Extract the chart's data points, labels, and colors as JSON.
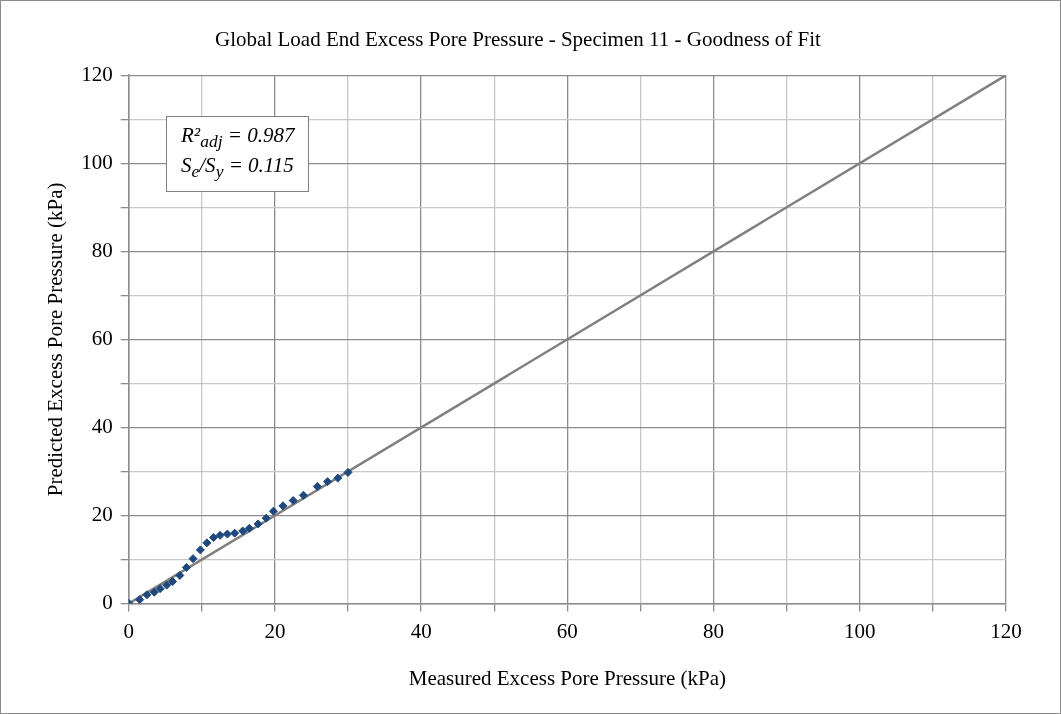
{
  "chart_data": {
    "type": "scatter",
    "title": "Global Load End Excess Pore Pressure - Specimen 11 - Goodness of Fit",
    "xlabel": "Measured Excess Pore Pressure (kPa)",
    "ylabel": "Predicted Excess Pore Pressure (kPa)",
    "annotations": [
      "R²$_{adj}$ = 0.987",
      "S$_{e}$/S$_{y}$ = 0.115"
    ],
    "xlim": [
      0,
      120
    ],
    "ylim": [
      0,
      120
    ],
    "xticks": [
      0,
      {
        "value": 10,
        "label": null
      },
      20,
      {
        "value": 30,
        "label": null
      },
      40,
      {
        "value": 50,
        "label": null
      },
      60,
      {
        "value": 70,
        "label": null
      },
      80,
      {
        "value": 90,
        "label": null
      },
      100,
      {
        "value": 110,
        "label": null
      },
      120
    ],
    "yticks": [
      0,
      {
        "value": 10,
        "label": null
      },
      20,
      {
        "value": 30,
        "label": null
      },
      40,
      {
        "value": 50,
        "label": null
      },
      60,
      {
        "value": 70,
        "label": null
      },
      80,
      {
        "value": 90,
        "label": null
      },
      100,
      {
        "value": 110,
        "label": null
      },
      120
    ],
    "grid": true,
    "legend": false,
    "series": [
      {
        "type": "scatter",
        "color": "#1f497d",
        "marker": "diamond",
        "x": [
          0,
          1.5,
          2.5,
          3.5,
          4.3,
          5.2,
          6.0,
          7.0,
          7.9,
          8.8,
          9.8,
          10.7,
          11.6,
          12.5,
          13.5,
          14.5,
          15.6,
          16.5,
          17.7,
          18.8,
          19.8,
          21.1,
          22.5,
          23.9,
          25.8,
          27.2,
          28.6,
          30.0
        ],
        "values": [
          0.1,
          0.9,
          2.0,
          2.6,
          3.4,
          4.2,
          5.0,
          6.4,
          8.2,
          10.2,
          12.2,
          13.8,
          15.0,
          15.5,
          15.8,
          16.0,
          16.5,
          17.1,
          18.1,
          19.4,
          21.0,
          22.2,
          23.4,
          24.6,
          26.6,
          27.7,
          28.5,
          29.8
        ]
      },
      {
        "type": "line",
        "color": "#808080",
        "marker": "none",
        "x": [
          0,
          120
        ],
        "values": [
          0,
          120
        ]
      }
    ]
  }
}
